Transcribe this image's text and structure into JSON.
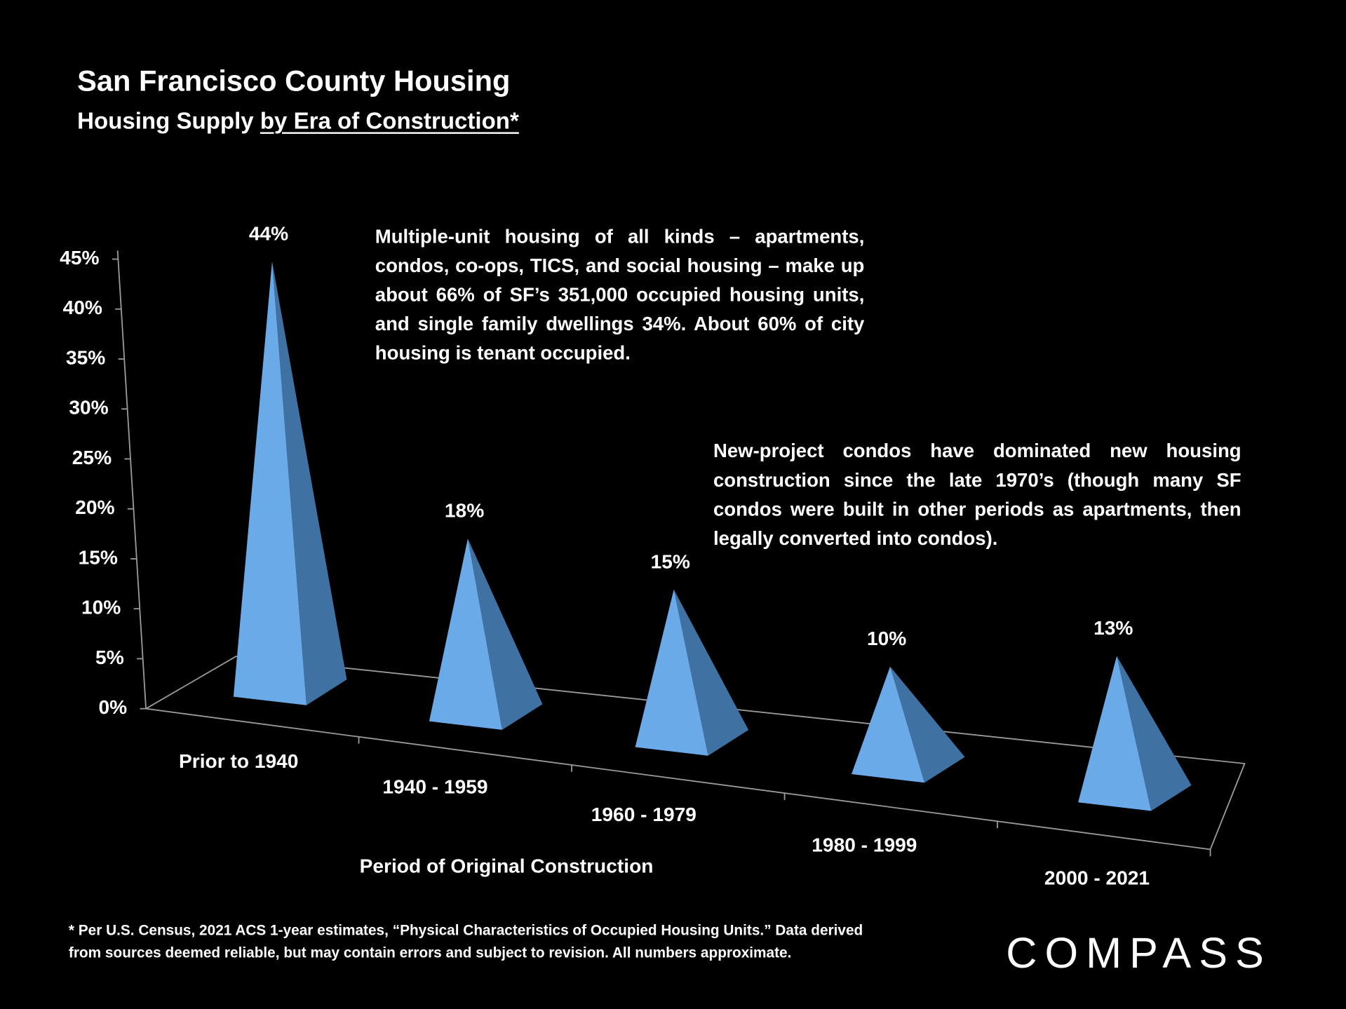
{
  "chart_data": {
    "type": "pyramid",
    "title": "San Francisco County Housing",
    "subtitle": [
      "Housing Supply",
      "by Era of Construction*"
    ],
    "categories": [
      "Prior to 1940",
      "1940 - 1959",
      "1960 - 1979",
      "1980 - 1999",
      "2000 - 2021"
    ],
    "values": [
      44,
      18,
      15,
      10,
      13
    ],
    "value_labels": [
      "44%",
      "18%",
      "15%",
      "10%",
      "13%"
    ],
    "color": "#6aaae8",
    "side_color": "#3f72a2",
    "ylim": [
      0,
      45
    ],
    "yticks": [
      {
        "value": 0,
        "label": "0%"
      },
      {
        "value": 5,
        "label": "5%"
      },
      {
        "value": 10,
        "label": "10%"
      },
      {
        "value": 15,
        "label": "15%"
      },
      {
        "value": 20,
        "label": "20%"
      },
      {
        "value": 25,
        "label": "25%"
      },
      {
        "value": 30,
        "label": "30%"
      },
      {
        "value": 35,
        "label": "35%"
      },
      {
        "value": 40,
        "label": "40%"
      },
      {
        "value": 45,
        "label": "45%"
      }
    ],
    "xlabel": "Period of Original Construction",
    "annotations": [
      "Multiple-unit housing of all kinds – apartments, condos, co-ops, TICS, and social housing – make up about 66% of SF’s 351,000 occupied housing units, and single family dwellings 34%. About 60% of city housing is tenant occupied.",
      "New-project condos have dominated new housing construction since the late 1970’s (though many SF condos were built in other periods as apartments, then legally converted into condos)."
    ]
  },
  "footnote": [
    "* Per U.S. Census, 2021 ACS 1-year estimates, “Physical Characteristics of Occupied Housing Units.” Data derived",
    "from sources deemed reliable, but may contain errors and subject to revision. All numbers approximate."
  ],
  "logo": "COMPASS"
}
